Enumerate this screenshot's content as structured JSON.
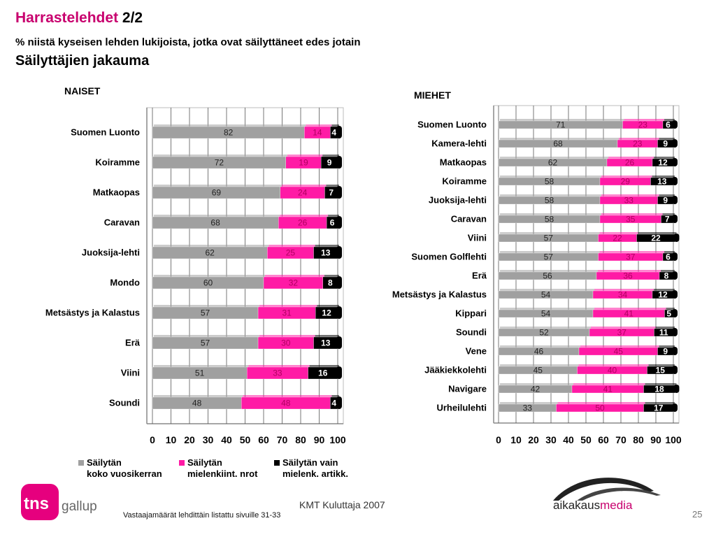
{
  "header": {
    "title_main": "Harrastelehdet",
    "title_page": "2/2",
    "subtitle": "% niistä kyseisen lehden lukijoista, jotka ovat säilyttäneet edes jotain",
    "section": "Säilyttäjien jakauma"
  },
  "colors": {
    "gray": "#a0a0a0",
    "pink": "#ff1aa5",
    "black": "#000000",
    "brand": "#c8006e"
  },
  "legend": [
    {
      "label_line1": "Säilytän",
      "label_line2": "koko vuosikerran",
      "color": "#a0a0a0"
    },
    {
      "label_line1": "Säilytän",
      "label_line2": "mielenkiint. nrot",
      "color": "#ff1aa5"
    },
    {
      "label_line1": "Säilytän vain",
      "label_line2": "mielenk. artikk.",
      "color": "#000000"
    }
  ],
  "footer": {
    "source": "KMT Kuluttaja 2007",
    "note": "Vastaajamäärät lehdittäin listattu sivuille 31-33",
    "page": "25"
  },
  "logos": {
    "tns": "tns",
    "gallup": "gallup",
    "aikakaus": "aikakaus",
    "media": "media"
  },
  "chart_data": [
    {
      "type": "bar",
      "orientation": "horizontal",
      "stacked": true,
      "title": "NAISET",
      "xlim": [
        0,
        100
      ],
      "xticks": [
        "0",
        "10",
        "20",
        "30",
        "40",
        "50",
        "60",
        "70",
        "80",
        "90",
        "100"
      ],
      "categories": [
        "Suomen Luonto",
        "Koiramme",
        "Matkaopas",
        "Caravan",
        "Juoksija-lehti",
        "Mondo",
        "Metsästys ja Kalastus",
        "Erä",
        "Viini",
        "Soundi"
      ],
      "series": [
        {
          "name": "Säilytän koko vuosikerran",
          "values": [
            82,
            72,
            69,
            68,
            62,
            60,
            57,
            57,
            51,
            48
          ]
        },
        {
          "name": "Säilytän mielenkiint. nrot",
          "values": [
            14,
            19,
            24,
            26,
            25,
            32,
            31,
            30,
            33,
            48
          ]
        },
        {
          "name": "Säilytän vain mielenk. artikk.",
          "values": [
            4,
            9,
            7,
            6,
            13,
            8,
            12,
            13,
            16,
            4
          ]
        }
      ]
    },
    {
      "type": "bar",
      "orientation": "horizontal",
      "stacked": true,
      "title": "MIEHET",
      "xlim": [
        0,
        100
      ],
      "xticks": [
        "0",
        "10",
        "20",
        "30",
        "40",
        "50",
        "60",
        "70",
        "80",
        "90",
        "100"
      ],
      "categories": [
        "Suomen Luonto",
        "Kamera-lehti",
        "Matkaopas",
        "Koiramme",
        "Juoksija-lehti",
        "Caravan",
        "Viini",
        "Suomen Golflehti",
        "Erä",
        "Metsästys ja Kalastus",
        "Kippari",
        "Soundi",
        "Vene",
        "Jääkiekkolehti",
        "Navigare",
        "Urheilulehti"
      ],
      "series": [
        {
          "name": "Säilytän koko vuosikerran",
          "values": [
            71,
            68,
            62,
            58,
            58,
            58,
            57,
            57,
            56,
            54,
            54,
            52,
            46,
            45,
            42,
            33
          ]
        },
        {
          "name": "Säilytän mielenkiint. nrot",
          "values": [
            23,
            23,
            26,
            29,
            33,
            35,
            22,
            37,
            36,
            34,
            41,
            37,
            45,
            40,
            41,
            50
          ]
        },
        {
          "name": "Säilytän vain mielenk. artikk.",
          "values": [
            6,
            9,
            12,
            13,
            9,
            7,
            22,
            6,
            8,
            12,
            5,
            11,
            9,
            15,
            18,
            17
          ]
        }
      ]
    }
  ]
}
